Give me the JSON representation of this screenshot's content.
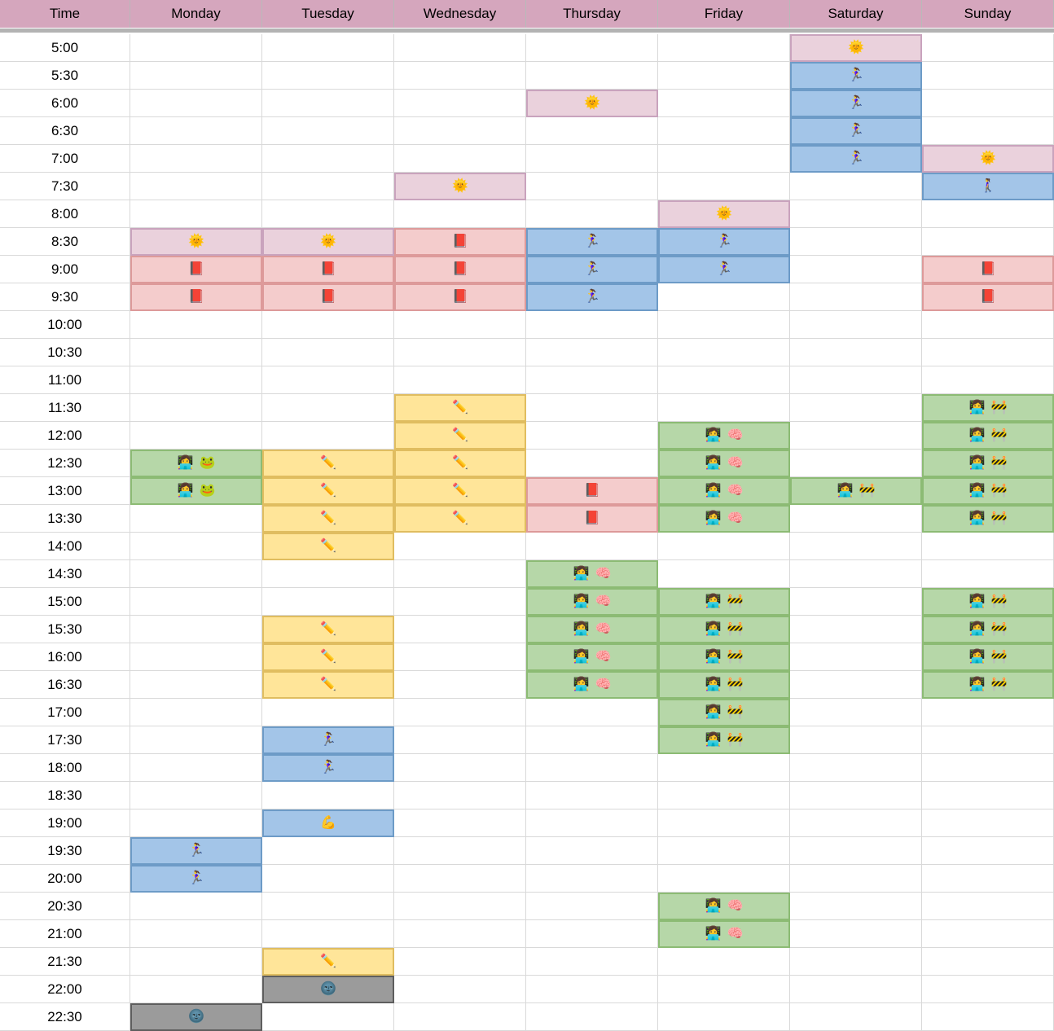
{
  "columns": [
    "Time",
    "Monday",
    "Tuesday",
    "Wednesday",
    "Thursday",
    "Friday",
    "Saturday",
    "Sunday"
  ],
  "times": [
    "5:00",
    "5:30",
    "6:00",
    "6:30",
    "7:00",
    "7:30",
    "8:00",
    "8:30",
    "9:00",
    "9:30",
    "10:00",
    "10:30",
    "11:00",
    "11:30",
    "12:00",
    "12:30",
    "13:00",
    "13:30",
    "14:00",
    "14:30",
    "15:00",
    "15:30",
    "16:00",
    "16:30",
    "17:00",
    "17:30",
    "18:00",
    "18:30",
    "19:00",
    "19:30",
    "20:00",
    "20:30",
    "21:00",
    "21:30",
    "22:00",
    "22:30"
  ],
  "colors": {
    "header_fill": "#d5a6bd",
    "gridline": "#d9d9d9",
    "freeze_divider": "#b3b3b3",
    "background": "#ffffff"
  },
  "activities": {
    "wake": {
      "fill": "#ead1dc",
      "border": "#c9a3bd",
      "icons": [
        {
          "name": "sun-with-face-icon",
          "glyph": "🌞"
        }
      ]
    },
    "run": {
      "fill": "#a3c5e8",
      "border": "#6d9bc7",
      "icons": [
        {
          "name": "woman-running-icon",
          "glyph": "🏃‍♀️"
        }
      ]
    },
    "walk": {
      "fill": "#a3c5e8",
      "border": "#6d9bc7",
      "icons": [
        {
          "name": "woman-walking-icon",
          "glyph": "🚶‍♀️"
        }
      ]
    },
    "strength": {
      "fill": "#a3c5e8",
      "border": "#6d9bc7",
      "icons": [
        {
          "name": "flexed-biceps-icon",
          "glyph": "💪"
        }
      ]
    },
    "read": {
      "fill": "#f4cccc",
      "border": "#dd9a9a",
      "icons": [
        {
          "name": "closed-red-book-icon",
          "glyph": "📕"
        }
      ]
    },
    "write": {
      "fill": "#ffe599",
      "border": "#e0bd60",
      "icons": [
        {
          "name": "pencil-icon",
          "glyph": "✏️"
        }
      ]
    },
    "code_frog": {
      "fill": "#b6d7a8",
      "border": "#8cbb74",
      "icons": [
        {
          "name": "woman-technologist-icon",
          "glyph": "👩‍💻"
        },
        {
          "name": "frog-icon",
          "glyph": "🐸"
        }
      ]
    },
    "code_brain": {
      "fill": "#b6d7a8",
      "border": "#8cbb74",
      "icons": [
        {
          "name": "woman-technologist-icon",
          "glyph": "👩‍💻"
        },
        {
          "name": "brain-icon",
          "glyph": "🧠"
        }
      ]
    },
    "code_build": {
      "fill": "#b6d7a8",
      "border": "#8cbb74",
      "icons": [
        {
          "name": "woman-technologist-icon",
          "glyph": "👩‍💻"
        },
        {
          "name": "construction-icon",
          "glyph": "🚧"
        }
      ]
    },
    "sleep": {
      "fill": "#9b9b9b",
      "border": "#5e5e5e",
      "icons": [
        {
          "name": "new-moon-face-icon",
          "glyph": "🌚"
        }
      ]
    }
  },
  "entries": [
    {
      "day": "Monday",
      "time": "8:30",
      "activity": "wake"
    },
    {
      "day": "Monday",
      "time": "9:00",
      "activity": "read"
    },
    {
      "day": "Monday",
      "time": "9:30",
      "activity": "read"
    },
    {
      "day": "Monday",
      "time": "12:30",
      "activity": "code_frog"
    },
    {
      "day": "Monday",
      "time": "13:00",
      "activity": "code_frog"
    },
    {
      "day": "Monday",
      "time": "19:30",
      "activity": "run"
    },
    {
      "day": "Monday",
      "time": "20:00",
      "activity": "run"
    },
    {
      "day": "Monday",
      "time": "22:30",
      "activity": "sleep"
    },
    {
      "day": "Tuesday",
      "time": "8:30",
      "activity": "wake"
    },
    {
      "day": "Tuesday",
      "time": "9:00",
      "activity": "read"
    },
    {
      "day": "Tuesday",
      "time": "9:30",
      "activity": "read"
    },
    {
      "day": "Tuesday",
      "time": "12:30",
      "activity": "write"
    },
    {
      "day": "Tuesday",
      "time": "13:00",
      "activity": "write"
    },
    {
      "day": "Tuesday",
      "time": "13:30",
      "activity": "write"
    },
    {
      "day": "Tuesday",
      "time": "14:00",
      "activity": "write"
    },
    {
      "day": "Tuesday",
      "time": "15:30",
      "activity": "write"
    },
    {
      "day": "Tuesday",
      "time": "16:00",
      "activity": "write"
    },
    {
      "day": "Tuesday",
      "time": "16:30",
      "activity": "write"
    },
    {
      "day": "Tuesday",
      "time": "17:30",
      "activity": "run"
    },
    {
      "day": "Tuesday",
      "time": "18:00",
      "activity": "run"
    },
    {
      "day": "Tuesday",
      "time": "19:00",
      "activity": "strength"
    },
    {
      "day": "Tuesday",
      "time": "21:30",
      "activity": "write"
    },
    {
      "day": "Tuesday",
      "time": "22:00",
      "activity": "sleep"
    },
    {
      "day": "Wednesday",
      "time": "7:30",
      "activity": "wake"
    },
    {
      "day": "Wednesday",
      "time": "8:30",
      "activity": "read"
    },
    {
      "day": "Wednesday",
      "time": "9:00",
      "activity": "read"
    },
    {
      "day": "Wednesday",
      "time": "9:30",
      "activity": "read"
    },
    {
      "day": "Wednesday",
      "time": "11:30",
      "activity": "write"
    },
    {
      "day": "Wednesday",
      "time": "12:00",
      "activity": "write"
    },
    {
      "day": "Wednesday",
      "time": "12:30",
      "activity": "write"
    },
    {
      "day": "Wednesday",
      "time": "13:00",
      "activity": "write"
    },
    {
      "day": "Wednesday",
      "time": "13:30",
      "activity": "write"
    },
    {
      "day": "Thursday",
      "time": "6:00",
      "activity": "wake"
    },
    {
      "day": "Thursday",
      "time": "8:30",
      "activity": "run"
    },
    {
      "day": "Thursday",
      "time": "9:00",
      "activity": "run"
    },
    {
      "day": "Thursday",
      "time": "9:30",
      "activity": "run"
    },
    {
      "day": "Thursday",
      "time": "13:00",
      "activity": "read"
    },
    {
      "day": "Thursday",
      "time": "13:30",
      "activity": "read"
    },
    {
      "day": "Thursday",
      "time": "14:30",
      "activity": "code_brain"
    },
    {
      "day": "Thursday",
      "time": "15:00",
      "activity": "code_brain"
    },
    {
      "day": "Thursday",
      "time": "15:30",
      "activity": "code_brain"
    },
    {
      "day": "Thursday",
      "time": "16:00",
      "activity": "code_brain"
    },
    {
      "day": "Thursday",
      "time": "16:30",
      "activity": "code_brain"
    },
    {
      "day": "Friday",
      "time": "8:00",
      "activity": "wake"
    },
    {
      "day": "Friday",
      "time": "8:30",
      "activity": "run"
    },
    {
      "day": "Friday",
      "time": "9:00",
      "activity": "run"
    },
    {
      "day": "Friday",
      "time": "12:00",
      "activity": "code_brain"
    },
    {
      "day": "Friday",
      "time": "12:30",
      "activity": "code_brain"
    },
    {
      "day": "Friday",
      "time": "13:00",
      "activity": "code_brain"
    },
    {
      "day": "Friday",
      "time": "13:30",
      "activity": "code_brain"
    },
    {
      "day": "Friday",
      "time": "15:00",
      "activity": "code_build"
    },
    {
      "day": "Friday",
      "time": "15:30",
      "activity": "code_build"
    },
    {
      "day": "Friday",
      "time": "16:00",
      "activity": "code_build"
    },
    {
      "day": "Friday",
      "time": "16:30",
      "activity": "code_build"
    },
    {
      "day": "Friday",
      "time": "17:00",
      "activity": "code_build"
    },
    {
      "day": "Friday",
      "time": "17:30",
      "activity": "code_build"
    },
    {
      "day": "Friday",
      "time": "20:30",
      "activity": "code_brain"
    },
    {
      "day": "Friday",
      "time": "21:00",
      "activity": "code_brain"
    },
    {
      "day": "Saturday",
      "time": "5:00",
      "activity": "wake"
    },
    {
      "day": "Saturday",
      "time": "5:30",
      "activity": "run"
    },
    {
      "day": "Saturday",
      "time": "6:00",
      "activity": "run"
    },
    {
      "day": "Saturday",
      "time": "6:30",
      "activity": "run"
    },
    {
      "day": "Saturday",
      "time": "7:00",
      "activity": "run"
    },
    {
      "day": "Saturday",
      "time": "13:00",
      "activity": "code_build"
    },
    {
      "day": "Sunday",
      "time": "7:00",
      "activity": "wake"
    },
    {
      "day": "Sunday",
      "time": "7:30",
      "activity": "walk"
    },
    {
      "day": "Sunday",
      "time": "9:00",
      "activity": "read"
    },
    {
      "day": "Sunday",
      "time": "9:30",
      "activity": "read"
    },
    {
      "day": "Sunday",
      "time": "11:30",
      "activity": "code_build"
    },
    {
      "day": "Sunday",
      "time": "12:00",
      "activity": "code_build"
    },
    {
      "day": "Sunday",
      "time": "12:30",
      "activity": "code_build"
    },
    {
      "day": "Sunday",
      "time": "13:00",
      "activity": "code_build"
    },
    {
      "day": "Sunday",
      "time": "13:30",
      "activity": "code_build"
    },
    {
      "day": "Sunday",
      "time": "15:00",
      "activity": "code_build"
    },
    {
      "day": "Sunday",
      "time": "15:30",
      "activity": "code_build"
    },
    {
      "day": "Sunday",
      "time": "16:00",
      "activity": "code_build"
    },
    {
      "day": "Sunday",
      "time": "16:30",
      "activity": "code_build"
    }
  ]
}
